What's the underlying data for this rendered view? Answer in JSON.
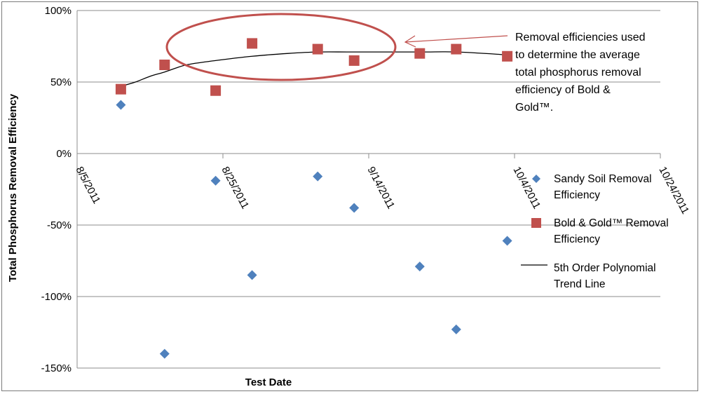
{
  "chart_data": {
    "type": "scatter",
    "xlabel": "Test Date",
    "ylabel": "Total Phosphorus Removal Efficiency",
    "x_tick_labels": [
      "8/5/2011",
      "8/25/2011",
      "9/14/2011",
      "10/4/2011",
      "10/24/2011"
    ],
    "y_tick_labels": [
      "100%",
      "50%",
      "0%",
      "-50%",
      "-100%",
      "-150%"
    ],
    "xlim": [
      "2011-08-05",
      "2011-10-24"
    ],
    "ylim": [
      -150,
      100
    ],
    "y_unit": "%",
    "grid": "horizontal",
    "legend_position": "right",
    "series": [
      {
        "name": "Sandy Soil Removal Efficiency",
        "legend_lines": [
          "Sandy Soil Removal",
          "Efficiency"
        ],
        "marker": "diamond",
        "color": "#4f81bd",
        "points": [
          {
            "x": "2011-08-11",
            "y": 34
          },
          {
            "x": "2011-08-17",
            "y": -140
          },
          {
            "x": "2011-08-24",
            "y": -19
          },
          {
            "x": "2011-08-29",
            "y": -85
          },
          {
            "x": "2011-09-07",
            "y": -16
          },
          {
            "x": "2011-09-12",
            "y": -38
          },
          {
            "x": "2011-09-21",
            "y": -79
          },
          {
            "x": "2011-09-26",
            "y": -123
          },
          {
            "x": "2011-10-03",
            "y": -61
          }
        ]
      },
      {
        "name": "Bold & Gold™ Removal Efficiency",
        "legend_lines": [
          "Bold & Gold™ Removal",
          "Efficiency"
        ],
        "marker": "square",
        "color": "#c0504d",
        "points": [
          {
            "x": "2011-08-11",
            "y": 45
          },
          {
            "x": "2011-08-17",
            "y": 62
          },
          {
            "x": "2011-08-24",
            "y": 44
          },
          {
            "x": "2011-08-29",
            "y": 77
          },
          {
            "x": "2011-09-07",
            "y": 73
          },
          {
            "x": "2011-09-12",
            "y": 65
          },
          {
            "x": "2011-09-21",
            "y": 70
          },
          {
            "x": "2011-09-26",
            "y": 73
          },
          {
            "x": "2011-10-03",
            "y": 68
          }
        ]
      },
      {
        "name": "5th Order Polynomial Trend Line",
        "legend_lines": [
          "5th Order Polynomial",
          "Trend Line"
        ],
        "marker": "line",
        "color": "#000000",
        "points": [
          {
            "x": "2011-08-11",
            "y": 47
          },
          {
            "x": "2011-08-13",
            "y": 50
          },
          {
            "x": "2011-08-15",
            "y": 54
          },
          {
            "x": "2011-08-17",
            "y": 57
          },
          {
            "x": "2011-08-20",
            "y": 62
          },
          {
            "x": "2011-08-24",
            "y": 65
          },
          {
            "x": "2011-08-29",
            "y": 68
          },
          {
            "x": "2011-09-03",
            "y": 70
          },
          {
            "x": "2011-09-07",
            "y": 71
          },
          {
            "x": "2011-09-12",
            "y": 71
          },
          {
            "x": "2011-09-21",
            "y": 71
          },
          {
            "x": "2011-09-26",
            "y": 71
          },
          {
            "x": "2011-10-03",
            "y": 69
          }
        ]
      }
    ],
    "annotation": {
      "lines": [
        "Removal efficiencies used",
        "to determine  the average",
        "total phosphorus  removal",
        "efficiency of Bold &",
        "Gold™."
      ],
      "highlight_color": "#c0504d"
    }
  }
}
